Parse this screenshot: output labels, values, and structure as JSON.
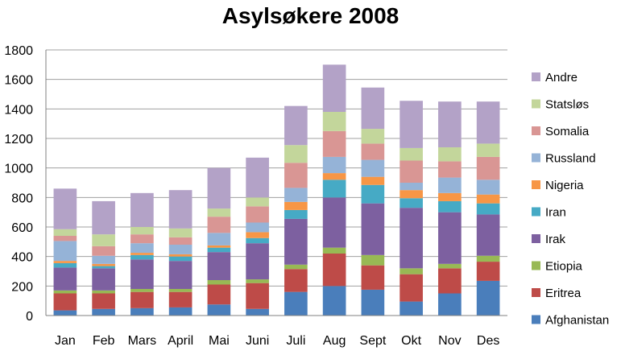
{
  "chart_data": {
    "type": "bar",
    "stacked": true,
    "title": "Asylsøkere 2008",
    "xlabel": "",
    "ylabel": "",
    "ylim": [
      0,
      1800
    ],
    "yticks": [
      0,
      200,
      400,
      600,
      800,
      1000,
      1200,
      1400,
      1600,
      1800
    ],
    "grid": true,
    "legend_position": "right",
    "categories": [
      "Jan",
      "Feb",
      "Mars",
      "April",
      "Mai",
      "Juni",
      "Juli",
      "Aug",
      "Sept",
      "Okt",
      "Nov",
      "Des"
    ],
    "series": [
      {
        "name": "Afghanistan",
        "color": "#4a7ebb",
        "values": [
          35,
          45,
          50,
          55,
          75,
          45,
          160,
          200,
          175,
          95,
          150,
          235
        ]
      },
      {
        "name": "Eritrea",
        "color": "#be4b48",
        "values": [
          115,
          105,
          110,
          105,
          135,
          175,
          155,
          220,
          165,
          185,
          170,
          130
        ]
      },
      {
        "name": "Etiopia",
        "color": "#98b954",
        "values": [
          20,
          20,
          20,
          20,
          30,
          25,
          30,
          40,
          70,
          40,
          30,
          40
        ]
      },
      {
        "name": "Irak",
        "color": "#7d60a0",
        "values": [
          155,
          150,
          200,
          190,
          190,
          245,
          310,
          340,
          350,
          410,
          350,
          280
        ]
      },
      {
        "name": "Iran",
        "color": "#46aac5",
        "values": [
          30,
          15,
          30,
          30,
          30,
          35,
          60,
          120,
          125,
          65,
          75,
          75
        ]
      },
      {
        "name": "Nigeria",
        "color": "#f79646",
        "values": [
          15,
          15,
          15,
          15,
          15,
          40,
          55,
          45,
          55,
          55,
          55,
          60
        ]
      },
      {
        "name": "Russland",
        "color": "#95b3d7",
        "values": [
          135,
          55,
          65,
          65,
          85,
          65,
          95,
          110,
          115,
          50,
          105,
          100
        ]
      },
      {
        "name": "Somalia",
        "color": "#d99694",
        "values": [
          35,
          65,
          60,
          50,
          110,
          110,
          170,
          175,
          110,
          150,
          110,
          155
        ]
      },
      {
        "name": "Statsløs",
        "color": "#c3d69b",
        "values": [
          45,
          80,
          50,
          60,
          55,
          60,
          120,
          130,
          100,
          85,
          95,
          90
        ]
      },
      {
        "name": "Andre",
        "color": "#b3a2c7",
        "values": [
          275,
          225,
          230,
          260,
          275,
          270,
          265,
          320,
          280,
          320,
          310,
          285
        ]
      }
    ]
  }
}
